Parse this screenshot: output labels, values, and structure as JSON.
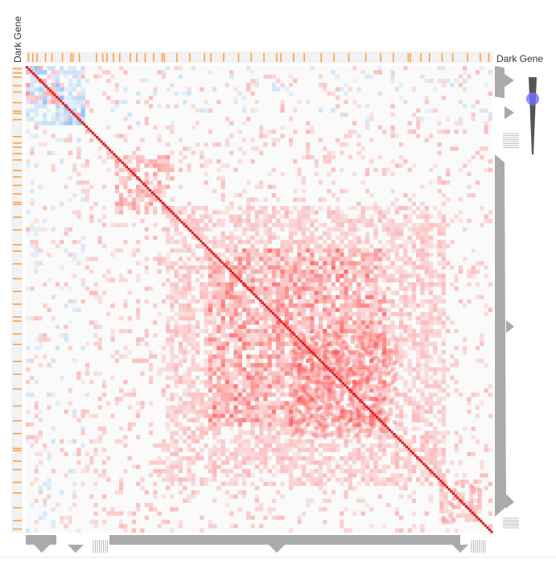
{
  "chart_data": {
    "type": "heatmap",
    "title": "",
    "top_track_label": "Dark Gene",
    "left_track_label": "Dark Gene",
    "n_genes": 220,
    "colors": {
      "positive": "#ff3b3b",
      "negative": "#74b4f2",
      "diagonal": "#e02020",
      "dark_gene_mark": "#ffa040",
      "track_bg": "#f2f2f2",
      "dendrogram": "#aaaaaa",
      "slider_handle": "#7070ff",
      "slider_track": "#555555"
    },
    "correlation_clusters": [
      {
        "kind": "positive",
        "from_gene": 0,
        "to_gene": 18,
        "strength": 0.45
      },
      {
        "kind": "positive",
        "from_gene": 18,
        "to_gene": 28,
        "strength": 0.4
      },
      {
        "kind": "positive",
        "from_gene": 42,
        "to_gene": 70,
        "strength": 0.45
      },
      {
        "kind": "positive",
        "from_gene": 66,
        "to_gene": 198,
        "strength": 0.3
      },
      {
        "kind": "positive",
        "from_gene": 86,
        "to_gene": 170,
        "strength": 0.4
      },
      {
        "kind": "positive",
        "from_gene": 125,
        "to_gene": 175,
        "strength": 0.35
      },
      {
        "kind": "positive",
        "from_gene": 195,
        "to_gene": 215,
        "strength": 0.3
      },
      {
        "kind": "negative",
        "from_gene": 0,
        "to_gene": 28,
        "strength": 0.35
      },
      {
        "kind": "negative",
        "from_gene": 14,
        "to_gene": 28,
        "strength": 0.3
      }
    ],
    "dark_gene_indices": [
      1,
      3,
      5,
      9,
      12,
      17,
      21,
      22,
      25,
      33,
      36,
      38,
      41,
      44,
      49,
      52,
      56,
      60,
      64,
      65,
      71,
      77,
      84,
      87,
      93,
      100,
      106,
      112,
      118,
      120,
      126,
      131,
      139,
      145,
      152,
      160,
      167,
      173,
      180,
      181,
      186,
      190,
      196,
      201,
      208,
      214,
      218
    ]
  },
  "slider": {
    "value": 0.72
  }
}
